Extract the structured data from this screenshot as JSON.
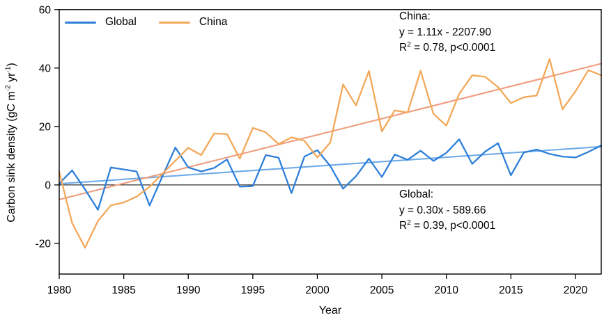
{
  "chart_data": {
    "type": "line",
    "title": "",
    "xlabel": "Year",
    "ylabel": "Carbon sink density (gC m-2 yr-1)",
    "xlim": [
      1980,
      2022
    ],
    "ylim": [
      -30.5,
      60
    ],
    "xticks": [
      1980,
      1985,
      1990,
      1995,
      2000,
      2005,
      2010,
      2015,
      2020
    ],
    "yticks": [
      -20,
      0,
      20,
      40,
      60
    ],
    "grid": false,
    "zero_line": true,
    "legend_position": "top-left-inside",
    "x": [
      1980,
      1981,
      1982,
      1983,
      1984,
      1985,
      1986,
      1987,
      1988,
      1989,
      1990,
      1991,
      1992,
      1993,
      1994,
      1995,
      1996,
      1997,
      1998,
      1999,
      2000,
      2001,
      2002,
      2003,
      2004,
      2005,
      2006,
      2007,
      2008,
      2009,
      2010,
      2011,
      2012,
      2013,
      2014,
      2015,
      2016,
      2017,
      2018,
      2019,
      2020,
      2021,
      2022
    ],
    "series": [
      {
        "name": "Global",
        "color": "#2E7FD9",
        "values": [
          0.5,
          5.0,
          -1.5,
          -8.5,
          6.0,
          5.3,
          4.6,
          -7.0,
          3.0,
          12.8,
          6.0,
          4.6,
          5.8,
          8.7,
          -0.6,
          -0.4,
          10.2,
          9.3,
          -2.8,
          9.7,
          11.9,
          6.5,
          -1.3,
          3.0,
          9.0,
          2.7,
          10.4,
          8.6,
          11.7,
          8.2,
          11.0,
          15.6,
          7.2,
          11.4,
          14.3,
          3.3,
          11.1,
          12.1,
          10.6,
          9.7,
          9.4,
          11.3,
          13.5
        ]
      },
      {
        "name": "China",
        "color": "#F3A859",
        "values": [
          4.5,
          -13.0,
          -21.5,
          -12.3,
          -7.0,
          -6.0,
          -4.0,
          -0.6,
          3.8,
          8.3,
          12.7,
          10.2,
          17.6,
          17.4,
          9.0,
          19.5,
          18.0,
          14.0,
          16.3,
          15.1,
          9.4,
          14.5,
          34.4,
          27.2,
          39.0,
          18.3,
          25.5,
          24.8,
          39.1,
          24.3,
          20.3,
          31.2,
          37.5,
          37.0,
          33.5,
          28.0,
          30.0,
          30.6,
          43.1,
          25.9,
          32.0,
          39.3,
          37.5
        ]
      }
    ],
    "trend_lines": [
      {
        "name": "Global trend",
        "color": "#6FABE8",
        "x": [
          1980,
          2022
        ],
        "y": [
          0.4,
          13.1
        ],
        "equation": "y = 0.30x - 589.66",
        "r2": 0.39,
        "p": "p<0.0001"
      },
      {
        "name": "China trend",
        "color": "#EF9D7C",
        "x": [
          1980,
          2022
        ],
        "y": [
          -5.0,
          41.5
        ],
        "equation": "y = 1.11x - 2207.90",
        "r2": 0.78,
        "p": "p<0.0001"
      }
    ]
  },
  "legend": {
    "items": [
      {
        "label": "Global",
        "color": "#2E7FD9"
      },
      {
        "label": "China",
        "color": "#F3A859"
      }
    ]
  },
  "annotations": {
    "china": {
      "title": "China:",
      "equation": "y = 1.11x - 2207.90",
      "r2_prefix": "R",
      "r2_sup": "2",
      "r2_rest": " = 0.78, p<0.0001"
    },
    "global": {
      "title": "Global:",
      "equation": "y = 0.30x - 589.66",
      "r2_prefix": "R",
      "r2_sup": "2",
      "r2_rest": " = 0.39, p<0.0001"
    }
  },
  "labels": {
    "xlabel": "Year",
    "ylabel_pre": "Carbon sink density (gC m",
    "ylabel_sup1": "-2",
    "ylabel_mid": " yr",
    "ylabel_sup2": "-1",
    "ylabel_post": ")"
  }
}
